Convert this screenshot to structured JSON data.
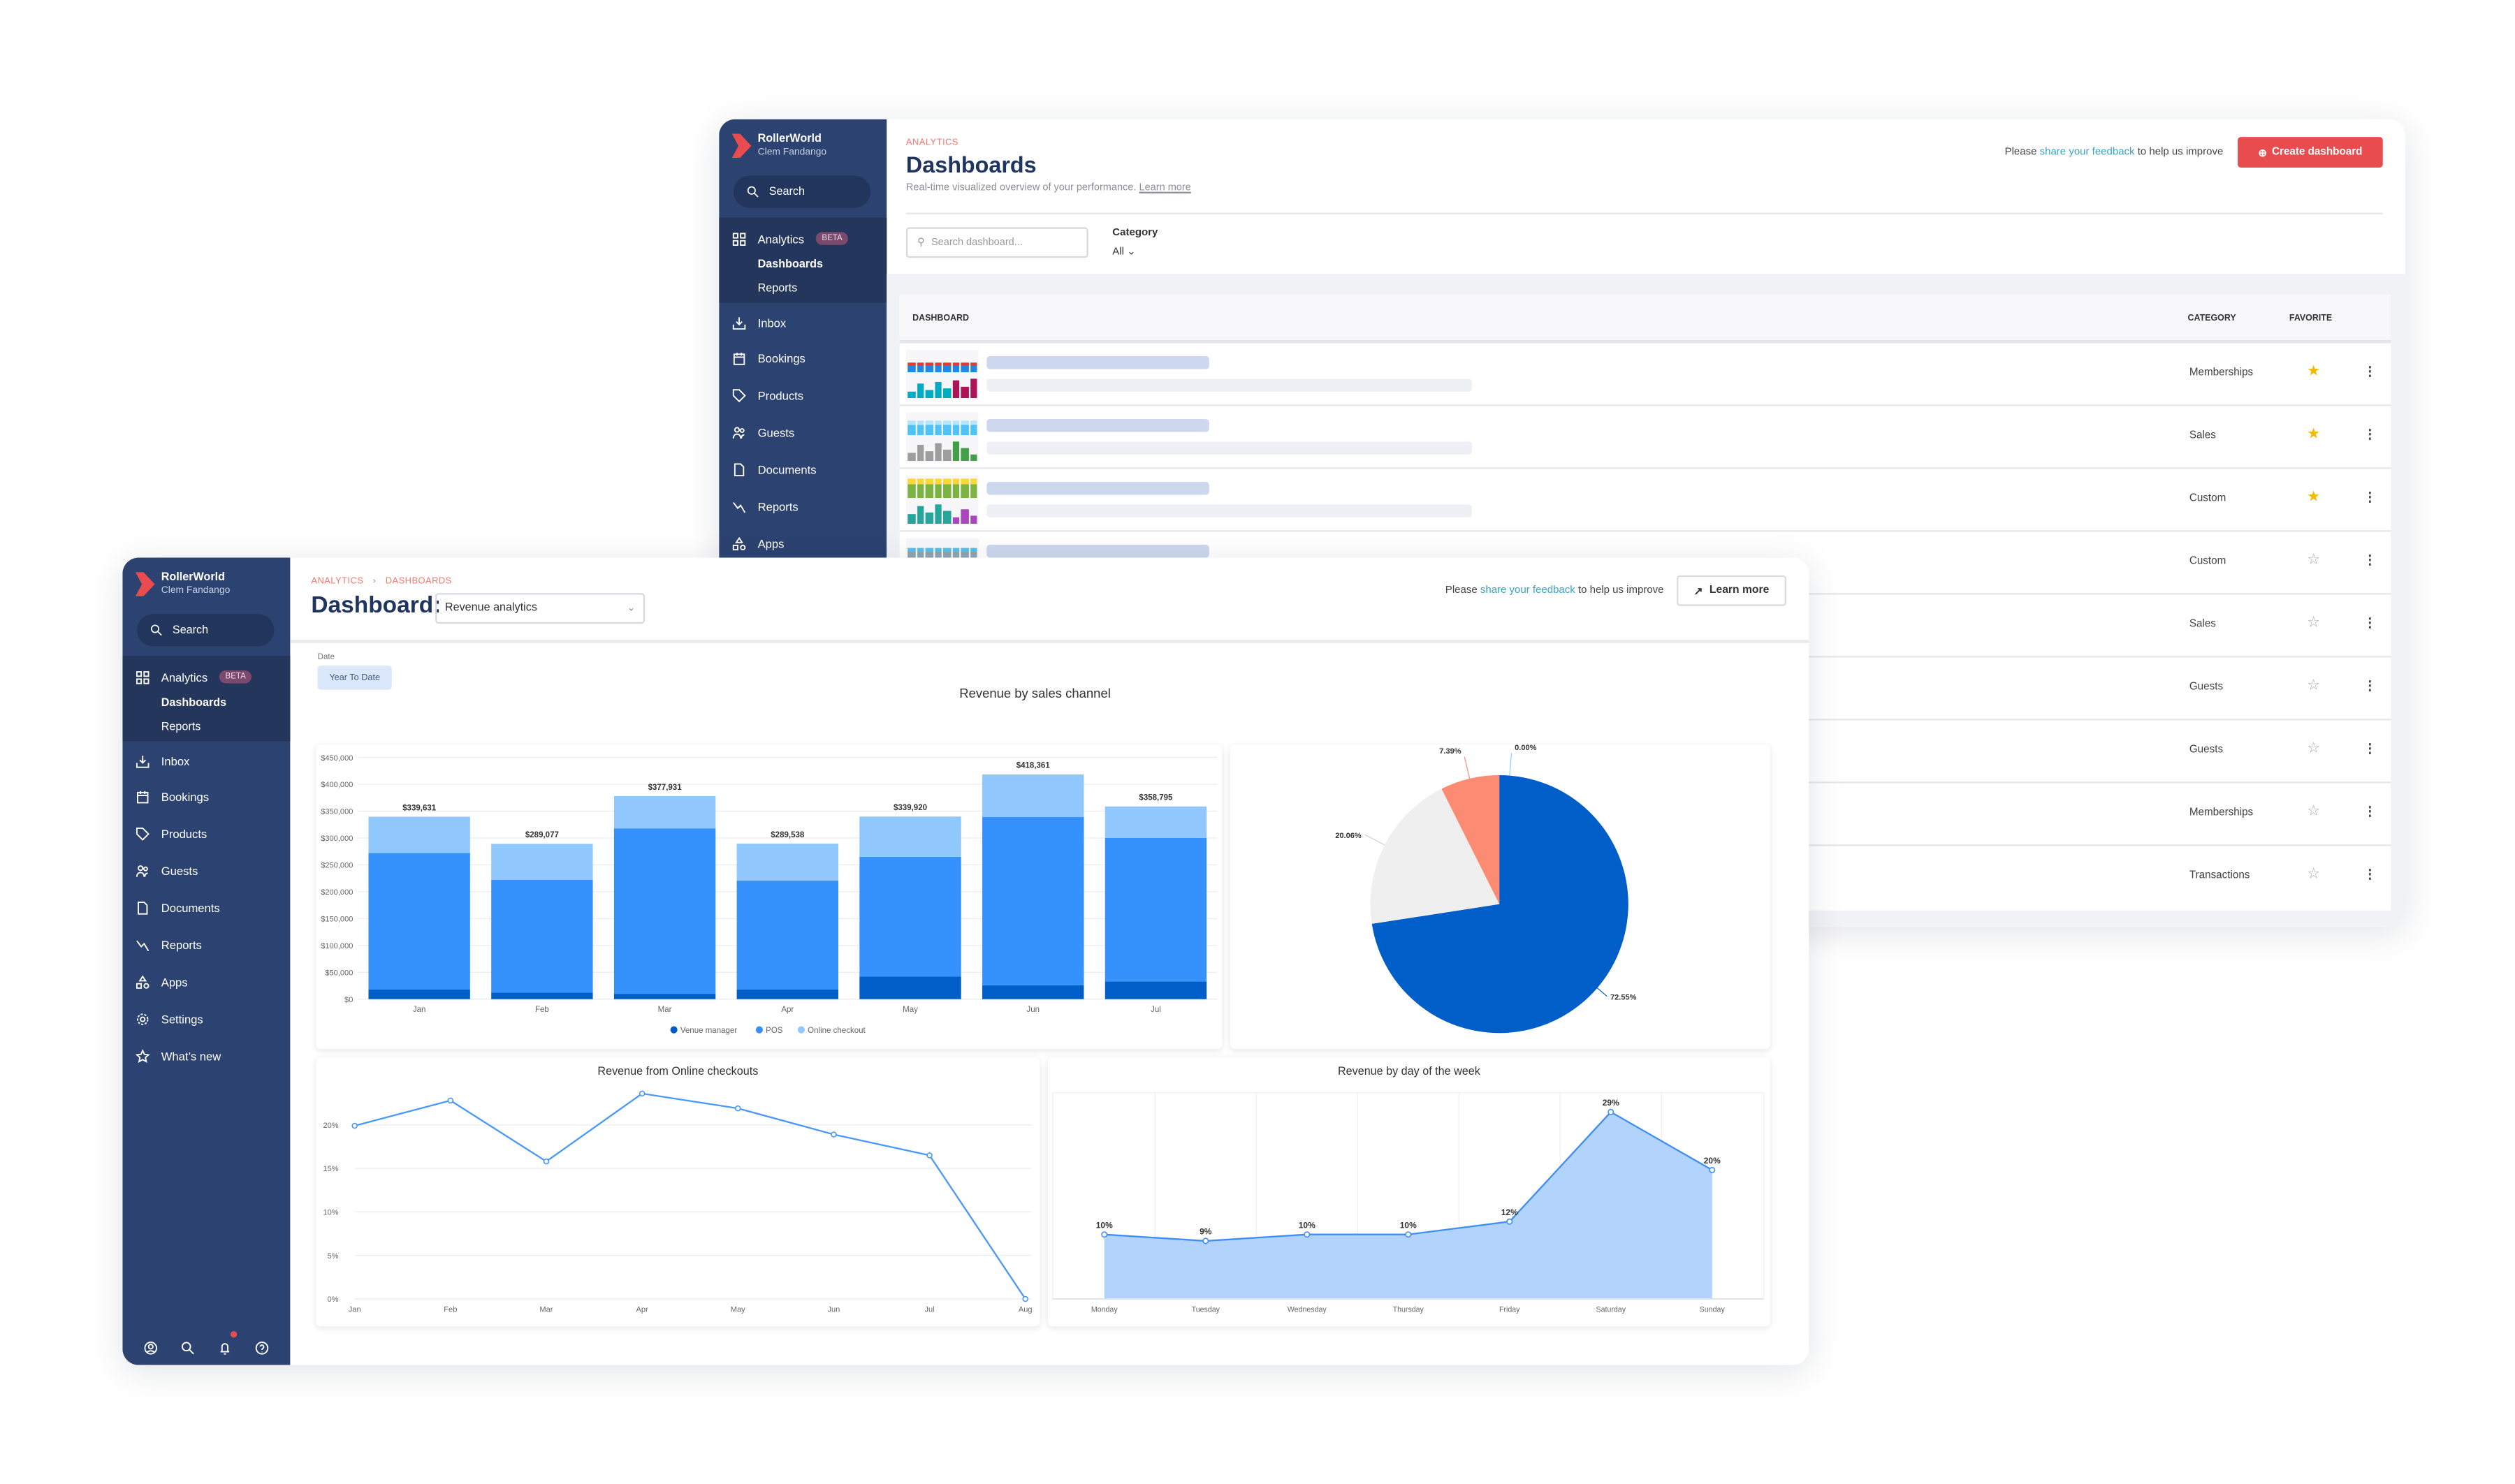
{
  "sidebar": {
    "brand": "RollerWorld",
    "user": "Clem Fandango",
    "search_label": "Search",
    "analytics": {
      "label": "Analytics",
      "badge": "BETA",
      "icon": "grid-icon",
      "children": [
        {
          "label": "Dashboards"
        },
        {
          "label": "Reports"
        }
      ]
    },
    "items": [
      {
        "label": "Inbox",
        "icon": "inbox-icon"
      },
      {
        "label": "Bookings",
        "icon": "calendar-icon"
      },
      {
        "label": "Products",
        "icon": "tag-icon"
      },
      {
        "label": "Guests",
        "icon": "users-icon"
      },
      {
        "label": "Documents",
        "icon": "document-icon"
      },
      {
        "label": "Reports",
        "icon": "trend-icon"
      },
      {
        "label": "Apps",
        "icon": "shapes-icon"
      },
      {
        "label": "Settings",
        "icon": "gear-icon"
      },
      {
        "label": "What’s new",
        "icon": "star-icon"
      }
    ],
    "bottom_icons": [
      "account-icon",
      "search-icon",
      "bell-icon",
      "help-icon"
    ]
  },
  "back": {
    "eyebrow": "ANALYTICS",
    "title": "Dashboards",
    "subtitle": "Real-time visualized overview of your performance.",
    "subtitle_link": "Learn more",
    "feedback": {
      "pre": "Please ",
      "link": "share your feedback",
      "post": " to help us improve"
    },
    "create_button": "Create dashboard",
    "search_placeholder": "Search dashboard...",
    "category_label": "Category",
    "category_value": "All",
    "table": {
      "headers": {
        "dashboard": "DASHBOARD",
        "category": "CATEGORY",
        "favorite": "FAVORITE"
      },
      "rows": [
        {
          "category": "Memberships",
          "favorite": true
        },
        {
          "category": "Sales",
          "favorite": true
        },
        {
          "category": "Custom",
          "favorite": true
        },
        {
          "category": "Custom",
          "favorite": false
        },
        {
          "category": "Sales",
          "favorite": false
        },
        {
          "category": "Guests",
          "favorite": false
        },
        {
          "category": "Guests",
          "favorite": false
        },
        {
          "category": "Memberships",
          "favorite": false
        },
        {
          "category": "Transactions",
          "favorite": false
        }
      ]
    }
  },
  "front": {
    "breadcrumb": [
      "ANALYTICS",
      "DASHBOARDS"
    ],
    "title": "Dashboard:",
    "dashboard_select": "Revenue analytics",
    "feedback": {
      "pre": "Please ",
      "link": "share your feedback",
      "post": " to help us improve"
    },
    "learn_more": "Learn more",
    "date_label": "Date",
    "date_value": "Year To Date",
    "section_title": "Revenue by sales channel"
  },
  "colors": {
    "accent": "#e84c4f",
    "navy": "#2c4270",
    "link": "#3aa3c3",
    "star": "#f5b800"
  },
  "chart_data": [
    {
      "type": "bar",
      "stacked": true,
      "categories": [
        "Jan",
        "Feb",
        "Mar",
        "Apr",
        "May",
        "Jun",
        "Jul"
      ],
      "series": [
        {
          "name": "Venue manager",
          "color": "#005ec8",
          "values": [
            18000,
            12000,
            10000,
            18000,
            42000,
            26000,
            33000
          ]
        },
        {
          "name": "POS",
          "color": "#3592fd",
          "values": [
            254000,
            210000,
            308000,
            203000,
            223000,
            313000,
            267000
          ]
        },
        {
          "name": "Online checkout",
          "color": "#90c8fd",
          "values": [
            67631,
            67077,
            59931,
            68538,
            74920,
            79361,
            58795
          ]
        }
      ],
      "total_labels": [
        "$339,631",
        "$289,077",
        "$377,931",
        "$289,538",
        "$339,920",
        "$418,361",
        "$358,795"
      ],
      "yticks": [
        "$0",
        "$50,000",
        "$100,000",
        "$150,000",
        "$200,000",
        "$250,000",
        "$300,000",
        "$350,000",
        "$400,000",
        "$450,000"
      ],
      "ylim": [
        0,
        450000
      ],
      "grid": true,
      "legend": "bottom"
    },
    {
      "type": "pie",
      "slices": [
        {
          "value": 72.55,
          "label": "72.55%",
          "color": "#005ec8"
        },
        {
          "value": 20.06,
          "label": "20.06%",
          "color": "#efefef"
        },
        {
          "value": 7.39,
          "label": "7.39%",
          "color": "#fc8b73"
        },
        {
          "value": 0.0,
          "label": "0.00%",
          "color": "#90c8fd"
        }
      ]
    },
    {
      "type": "line",
      "title": "Revenue from Online checkouts",
      "x": [
        "Jan",
        "Feb",
        "Mar",
        "Apr",
        "May",
        "Jun",
        "Jul",
        "Aug"
      ],
      "values": [
        19.9,
        22.8,
        15.8,
        23.6,
        21.9,
        18.9,
        16.5,
        0
      ],
      "yticks": [
        "0%",
        "5%",
        "10%",
        "15%",
        "20%"
      ],
      "ylim": [
        0,
        25
      ],
      "color": "#4a98f7",
      "grid": true
    },
    {
      "type": "area",
      "title": "Revenue by day of the week",
      "x": [
        "Monday",
        "Tuesday",
        "Wednesday",
        "Thursday",
        "Friday",
        "Saturday",
        "Sunday"
      ],
      "values": [
        10,
        9,
        10,
        10,
        12,
        29,
        20
      ],
      "labels": [
        "10%",
        "9%",
        "10%",
        "10%",
        "12%",
        "29%",
        "20%"
      ],
      "ylim": [
        0,
        32
      ],
      "color": "#3d8ff5",
      "fill": "#aed2fc"
    }
  ]
}
